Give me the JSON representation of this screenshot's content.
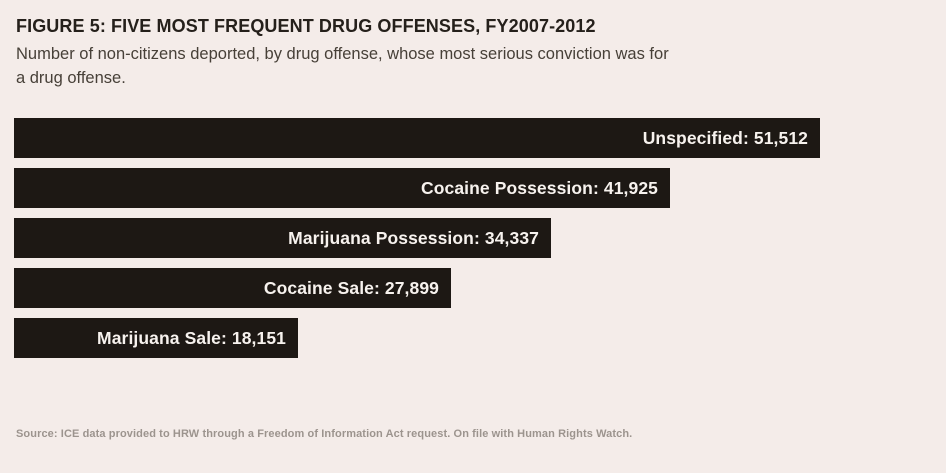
{
  "page": {
    "background_color": "#f4ece9",
    "bar_color": "#1d1814",
    "title_color": "#25201b",
    "subtitle_color": "#474038",
    "bar_label_color": "#f7f2ee",
    "source_color": "#9c948e"
  },
  "header": {
    "title": "FIGURE 5: FIVE MOST FREQUENT DRUG OFFENSES, FY2007-2012",
    "subtitle": "Number of non-citizens deported, by drug offense, whose most serious conviction was for a drug offense.",
    "subtitle_lines": [
      "Number of non-citizens deported, by drug offense, whose most serious conviction was for",
      "a drug offense."
    ]
  },
  "chart_data": {
    "type": "bar",
    "orientation": "horizontal",
    "title": "FIGURE 5: FIVE MOST FREQUENT DRUG OFFENSES, FY2007-2012",
    "subtitle": "Number of non-citizens deported, by drug offense, whose most serious conviction was for a drug offense.",
    "categories": [
      "Unspecified",
      "Cocaine Possession",
      "Marijuana Possession",
      "Cocaine Sale",
      "Marijuana Sale"
    ],
    "values": [
      51512,
      41925,
      34337,
      27899,
      18151
    ],
    "labels": [
      "Unspecified: 51,512",
      "Cocaine Possession: 41,925",
      "Marijuana Possession: 34,337",
      "Cocaine Sale: 27,899",
      "Marijuana Sale: 18,151"
    ],
    "xlabel": "",
    "ylabel": "",
    "xlim": [
      0,
      51512
    ],
    "grid": false,
    "legend": false,
    "label_position": "inside-right",
    "bar_color": "#1d1814",
    "source": "Source: ICE data provided to HRW through a Freedom of Information Act request. On file with Human Rights Watch."
  },
  "footer": {
    "source": "Source: ICE data provided to HRW through a Freedom of Information Act request. On file with Human Rights Watch."
  }
}
